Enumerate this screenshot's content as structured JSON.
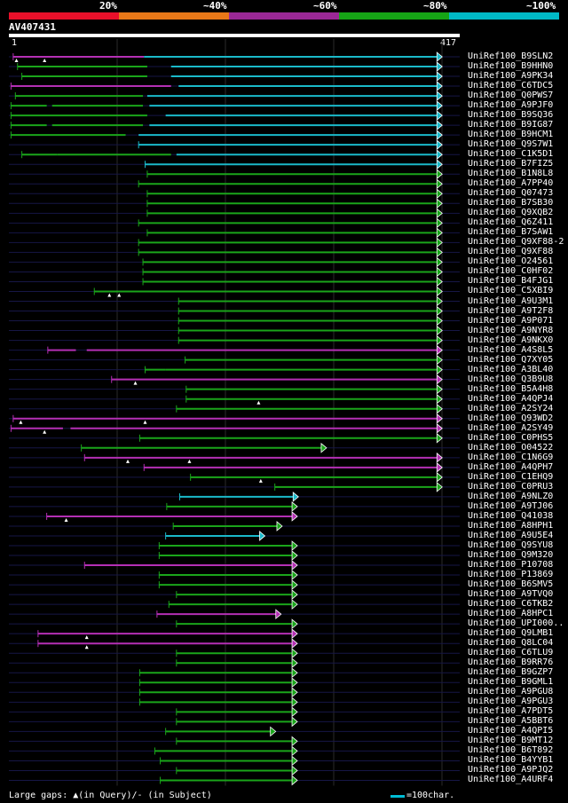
{
  "legend": {
    "labels": [
      "20%",
      "~40%",
      "~60%",
      "~80%",
      "~100%"
    ],
    "colors": [
      "#e8102a",
      "#e87818",
      "#9a2896",
      "#16a516",
      "#00b9c6"
    ]
  },
  "query": {
    "id": "AV407431",
    "start": "1",
    "end": "417",
    "length": 417
  },
  "hit_colors": {
    "magenta": "#b42fb4",
    "green": "#1aa51a",
    "cyan": "#1ab9c9"
  },
  "hits": [
    {
      "name": "UniRef100_B9SLN2",
      "segs": [
        [
          4,
          55,
          "m"
        ],
        [
          55,
          125,
          "m"
        ],
        [
          125,
          400,
          "c"
        ]
      ],
      "tri": [
        7,
        33
      ]
    },
    {
      "name": "UniRef100_B9HHN0",
      "segs": [
        [
          8,
          128,
          "g"
        ],
        [
          150,
          400,
          "c"
        ]
      ]
    },
    {
      "name": "UniRef100_A9PK34",
      "segs": [
        [
          12,
          128,
          "g"
        ],
        [
          150,
          400,
          "c"
        ]
      ]
    },
    {
      "name": "UniRef100_C6TDC5",
      "segs": [
        [
          2,
          150,
          "m"
        ],
        [
          157,
          400,
          "c"
        ]
      ]
    },
    {
      "name": "UniRef100_Q0PWS7",
      "segs": [
        [
          6,
          124,
          "g"
        ],
        [
          128,
          400,
          "c"
        ]
      ]
    },
    {
      "name": "UniRef100_A9PJF0",
      "segs": [
        [
          2,
          35,
          "g"
        ],
        [
          40,
          124,
          "g"
        ],
        [
          130,
          400,
          "c"
        ]
      ]
    },
    {
      "name": "UniRef100_B9SQ36",
      "segs": [
        [
          2,
          128,
          "g"
        ],
        [
          145,
          400,
          "c"
        ]
      ]
    },
    {
      "name": "UniRef100_B9IG87",
      "segs": [
        [
          2,
          35,
          "g"
        ],
        [
          40,
          124,
          "g"
        ],
        [
          130,
          400,
          "c"
        ]
      ]
    },
    {
      "name": "UniRef100_B9HCM1",
      "segs": [
        [
          2,
          108,
          "g"
        ],
        [
          120,
          400,
          "c"
        ]
      ]
    },
    {
      "name": "UniRef100_Q9S7W1",
      "segs": [
        [
          120,
          400,
          "c"
        ]
      ]
    },
    {
      "name": "UniRef100_C1K5D1",
      "segs": [
        [
          12,
          45,
          "g"
        ],
        [
          45,
          150,
          "g"
        ],
        [
          155,
          400,
          "c"
        ]
      ]
    },
    {
      "name": "UniRef100_B7FIZ5",
      "segs": [
        [
          126,
          400,
          "c"
        ]
      ]
    },
    {
      "name": "UniRef100_B1N8L8",
      "segs": [
        [
          128,
          400,
          "g"
        ]
      ]
    },
    {
      "name": "UniRef100_A7PP40",
      "segs": [
        [
          120,
          400,
          "g"
        ]
      ]
    },
    {
      "name": "UniRef100_Q07473",
      "segs": [
        [
          128,
          400,
          "g"
        ]
      ]
    },
    {
      "name": "UniRef100_B7SB30",
      "segs": [
        [
          128,
          400,
          "g"
        ]
      ]
    },
    {
      "name": "UniRef100_Q9XQB2",
      "segs": [
        [
          128,
          400,
          "g"
        ]
      ]
    },
    {
      "name": "UniRef100_Q6Z411",
      "segs": [
        [
          120,
          400,
          "g"
        ]
      ]
    },
    {
      "name": "UniRef100_B7SAW1",
      "segs": [
        [
          128,
          400,
          "g"
        ]
      ]
    },
    {
      "name": "UniRef100_Q9XF88-2",
      "segs": [
        [
          120,
          400,
          "g"
        ]
      ]
    },
    {
      "name": "UniRef100_Q9XF88",
      "segs": [
        [
          120,
          400,
          "g"
        ]
      ]
    },
    {
      "name": "UniRef100_O24561",
      "segs": [
        [
          124,
          400,
          "g"
        ]
      ]
    },
    {
      "name": "UniRef100_C0HF02",
      "segs": [
        [
          124,
          400,
          "g"
        ]
      ]
    },
    {
      "name": "UniRef100_B4FJG1",
      "segs": [
        [
          124,
          400,
          "g"
        ]
      ]
    },
    {
      "name": "UniRef100_C5XBI9",
      "segs": [
        [
          79,
          400,
          "g"
        ]
      ],
      "tri": [
        93,
        102
      ]
    },
    {
      "name": "UniRef100_A9U3M1",
      "segs": [
        [
          157,
          400,
          "g"
        ]
      ]
    },
    {
      "name": "UniRef100_A9T2F8",
      "segs": [
        [
          157,
          400,
          "g"
        ]
      ]
    },
    {
      "name": "UniRef100_A9P071",
      "segs": [
        [
          157,
          400,
          "g"
        ]
      ]
    },
    {
      "name": "UniRef100_A9NYR8",
      "segs": [
        [
          157,
          400,
          "g"
        ]
      ]
    },
    {
      "name": "UniRef100_A9NKX0",
      "segs": [
        [
          157,
          400,
          "g"
        ]
      ]
    },
    {
      "name": "UniRef100_A4S8L5",
      "segs": [
        [
          36,
          62,
          "m"
        ],
        [
          72,
          400,
          "m"
        ]
      ]
    },
    {
      "name": "UniRef100_Q7XY05",
      "segs": [
        [
          163,
          400,
          "g"
        ]
      ]
    },
    {
      "name": "UniRef100_A3BL40",
      "segs": [
        [
          126,
          145,
          "g"
        ],
        [
          145,
          400,
          "g"
        ]
      ]
    },
    {
      "name": "UniRef100_Q3B9U8",
      "segs": [
        [
          95,
          400,
          "m"
        ]
      ],
      "tri": [
        117
      ]
    },
    {
      "name": "UniRef100_B5A4H8",
      "segs": [
        [
          164,
          400,
          "g"
        ]
      ]
    },
    {
      "name": "UniRef100_A4QPJ4",
      "segs": [
        [
          164,
          400,
          "g"
        ]
      ],
      "tri": [
        231
      ]
    },
    {
      "name": "UniRef100_A2SY24",
      "segs": [
        [
          155,
          400,
          "g"
        ]
      ]
    },
    {
      "name": "UniRef100_Q93WD2",
      "segs": [
        [
          4,
          400,
          "m"
        ]
      ],
      "tri": [
        11,
        126
      ]
    },
    {
      "name": "UniRef100_A2SY49",
      "segs": [
        [
          2,
          50,
          "m"
        ],
        [
          57,
          400,
          "m"
        ]
      ],
      "tri": [
        33
      ]
    },
    {
      "name": "UniRef100_C0PHS5",
      "segs": [
        [
          121,
          400,
          "g"
        ]
      ]
    },
    {
      "name": "UniRef100_O04522",
      "segs": [
        [
          67,
          293,
          "g"
        ]
      ]
    },
    {
      "name": "UniRef100_C1N6G9",
      "segs": [
        [
          70,
          400,
          "m"
        ]
      ],
      "tri": [
        110,
        167
      ]
    },
    {
      "name": "UniRef100_A4QPH7",
      "segs": [
        [
          125,
          400,
          "m"
        ]
      ]
    },
    {
      "name": "UniRef100_C1EHQ9",
      "segs": [
        [
          168,
          400,
          "g"
        ]
      ],
      "tri": [
        233
      ]
    },
    {
      "name": "UniRef100_C0PRU3",
      "segs": [
        [
          246,
          400,
          "g"
        ]
      ]
    },
    {
      "name": "UniRef100_A9NLZ0",
      "segs": [
        [
          158,
          267,
          "c"
        ]
      ]
    },
    {
      "name": "UniRef100_A9TJ06",
      "segs": [
        [
          146,
          266,
          "g"
        ]
      ]
    },
    {
      "name": "UniRef100_Q41038",
      "segs": [
        [
          35,
          266,
          "m"
        ]
      ],
      "tri": [
        53
      ]
    },
    {
      "name": "UniRef100_A8HPH1",
      "segs": [
        [
          152,
          252,
          "g"
        ]
      ]
    },
    {
      "name": "UniRef100_A9U5E4",
      "segs": [
        [
          145,
          236,
          "c"
        ]
      ]
    },
    {
      "name": "UniRef100_Q9SYU8",
      "segs": [
        [
          139,
          266,
          "g"
        ]
      ]
    },
    {
      "name": "UniRef100_Q9M320",
      "segs": [
        [
          139,
          266,
          "g"
        ]
      ]
    },
    {
      "name": "UniRef100_P10708",
      "segs": [
        [
          70,
          266,
          "m"
        ]
      ]
    },
    {
      "name": "UniRef100_P13869",
      "segs": [
        [
          139,
          266,
          "g"
        ]
      ]
    },
    {
      "name": "UniRef100_B6SMV5",
      "segs": [
        [
          139,
          266,
          "g"
        ]
      ]
    },
    {
      "name": "UniRef100_A9TVQ0",
      "segs": [
        [
          155,
          266,
          "g"
        ]
      ]
    },
    {
      "name": "UniRef100_C6TKB2",
      "segs": [
        [
          148,
          266,
          "g"
        ]
      ]
    },
    {
      "name": "UniRef100_A8HPC1",
      "segs": [
        [
          137,
          251,
          "m"
        ]
      ]
    },
    {
      "name": "UniRef100_UPI000..",
      "segs": [
        [
          155,
          266,
          "g"
        ]
      ]
    },
    {
      "name": "UniRef100_Q9LMB1",
      "segs": [
        [
          27,
          266,
          "m"
        ]
      ],
      "tri": [
        72
      ]
    },
    {
      "name": "UniRef100_Q8LC04",
      "segs": [
        [
          27,
          266,
          "m"
        ]
      ],
      "tri": [
        72
      ]
    },
    {
      "name": "UniRef100_C6TLU9",
      "segs": [
        [
          155,
          266,
          "g"
        ]
      ]
    },
    {
      "name": "UniRef100_B9RR76",
      "segs": [
        [
          155,
          266,
          "g"
        ]
      ]
    },
    {
      "name": "UniRef100_B9GZP7",
      "segs": [
        [
          121,
          266,
          "g"
        ]
      ]
    },
    {
      "name": "UniRef100_B9GML1",
      "segs": [
        [
          121,
          266,
          "g"
        ]
      ]
    },
    {
      "name": "UniRef100_A9PGU8",
      "segs": [
        [
          121,
          266,
          "g"
        ]
      ]
    },
    {
      "name": "UniRef100_A9PGU3",
      "segs": [
        [
          121,
          266,
          "g"
        ]
      ]
    },
    {
      "name": "UniRef100_A7PDT5",
      "segs": [
        [
          155,
          266,
          "g"
        ]
      ]
    },
    {
      "name": "UniRef100_A5BBT6",
      "segs": [
        [
          155,
          266,
          "g"
        ]
      ]
    },
    {
      "name": "UniRef100_A4QPI5",
      "segs": [
        [
          145,
          246,
          "g"
        ]
      ]
    },
    {
      "name": "UniRef100_B9MT12",
      "segs": [
        [
          155,
          266,
          "g"
        ]
      ]
    },
    {
      "name": "UniRef100_B6T892",
      "segs": [
        [
          135,
          266,
          "g"
        ]
      ]
    },
    {
      "name": "UniRef100_B4YYB1",
      "segs": [
        [
          140,
          266,
          "g"
        ]
      ]
    },
    {
      "name": "UniRef100_A9PJQ2",
      "segs": [
        [
          155,
          266,
          "g"
        ]
      ]
    },
    {
      "name": "UniRef100_A4URF4",
      "segs": [
        [
          140,
          266,
          "g"
        ]
      ]
    }
  ],
  "footer": {
    "gaps_label": "Large gaps: ▲(in Query)/- (in Subject)",
    "scale_label": "=100char."
  }
}
